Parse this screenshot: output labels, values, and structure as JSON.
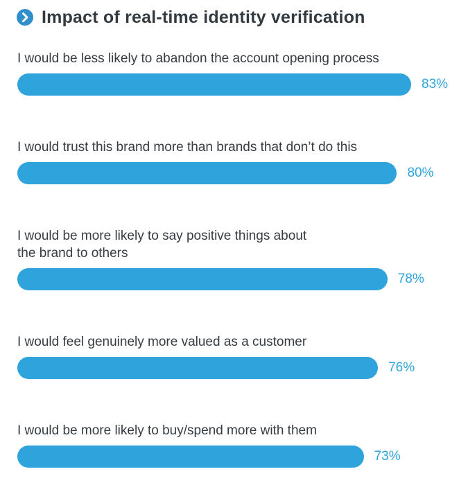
{
  "header": {
    "title": "Impact of real-time identity verification",
    "icon": "chevron-right-circle-icon"
  },
  "colors": {
    "bar": "#2ea3dc",
    "value_text": "#2ea3dc",
    "icon": "#2f8fcb",
    "text": "#353c42"
  },
  "chart_data": {
    "type": "bar",
    "orientation": "horizontal",
    "title": "Impact of real-time identity verification",
    "categories": [
      [
        "I would be less likely to abandon the account opening process"
      ],
      [
        "I would trust this brand more than brands that don’t do this"
      ],
      [
        "I would be more likely to say positive things about",
        "the brand to others"
      ],
      [
        "I would feel genuinely more valued as a customer"
      ],
      [
        "I would be more likely to buy/spend more with them"
      ]
    ],
    "values": [
      83,
      80,
      78,
      76,
      73
    ],
    "value_labels": [
      "83%",
      "80%",
      "78%",
      "76%",
      "73%"
    ],
    "unit": "%",
    "xlim": [
      0,
      100
    ],
    "grid": false,
    "legend": "none"
  }
}
